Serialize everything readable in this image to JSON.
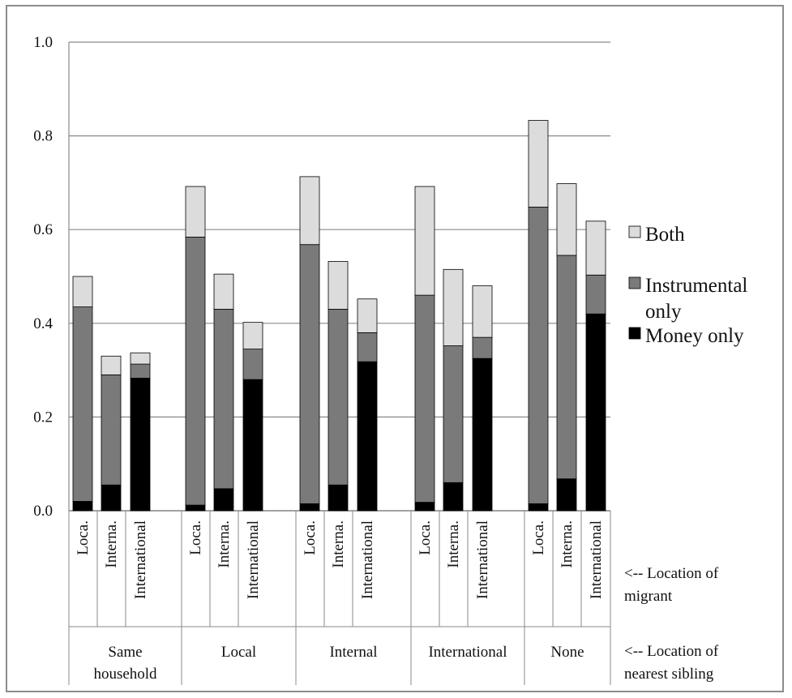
{
  "chart_data": {
    "type": "bar",
    "stacked": true,
    "ylim": [
      0,
      1.0
    ],
    "yticks": [
      "0.0",
      "0.2",
      "0.4",
      "0.6",
      "0.8",
      "1.0"
    ],
    "grid": true,
    "legend_position": "right",
    "category_axis_note": "<-- Location of migrant",
    "group_axis_note": "<-- Location of nearest sibling",
    "groups": [
      {
        "label": "Same household",
        "bars": [
          {
            "label": "Local",
            "money": 0.02,
            "instrumental": 0.415,
            "both": 0.065
          },
          {
            "label": "Internal",
            "money": 0.055,
            "instrumental": 0.235,
            "both": 0.04
          },
          {
            "label": "International",
            "money": 0.283,
            "instrumental": 0.03,
            "both": 0.024
          }
        ]
      },
      {
        "label": "Local",
        "bars": [
          {
            "label": "Local",
            "money": 0.012,
            "instrumental": 0.572,
            "both": 0.108
          },
          {
            "label": "Internal",
            "money": 0.047,
            "instrumental": 0.383,
            "both": 0.075
          },
          {
            "label": "International",
            "money": 0.28,
            "instrumental": 0.065,
            "both": 0.057
          }
        ]
      },
      {
        "label": "Internal",
        "bars": [
          {
            "label": "Local",
            "money": 0.015,
            "instrumental": 0.553,
            "both": 0.145
          },
          {
            "label": "Internal",
            "money": 0.055,
            "instrumental": 0.375,
            "both": 0.102
          },
          {
            "label": "International",
            "money": 0.318,
            "instrumental": 0.062,
            "both": 0.072
          }
        ]
      },
      {
        "label": "International",
        "bars": [
          {
            "label": "Local",
            "money": 0.018,
            "instrumental": 0.442,
            "both": 0.232
          },
          {
            "label": "Internal",
            "money": 0.06,
            "instrumental": 0.292,
            "both": 0.163
          },
          {
            "label": "International",
            "money": 0.325,
            "instrumental": 0.045,
            "both": 0.11
          }
        ]
      },
      {
        "label": "None",
        "bars": [
          {
            "label": "Local",
            "money": 0.015,
            "instrumental": 0.633,
            "both": 0.185
          },
          {
            "label": "Internal",
            "money": 0.068,
            "instrumental": 0.477,
            "both": 0.153
          },
          {
            "label": "International",
            "money": 0.42,
            "instrumental": 0.083,
            "both": 0.115
          }
        ]
      }
    ],
    "series": [
      {
        "key": "both",
        "name": "Both",
        "color": "#dcdcdc"
      },
      {
        "key": "instrumental",
        "name": "Instrumental only",
        "color": "#7a7a7a"
      },
      {
        "key": "money",
        "name": "Money only",
        "color": "#000000"
      }
    ],
    "category_display_labels": [
      "Loca.",
      "Interna.",
      "International"
    ]
  }
}
